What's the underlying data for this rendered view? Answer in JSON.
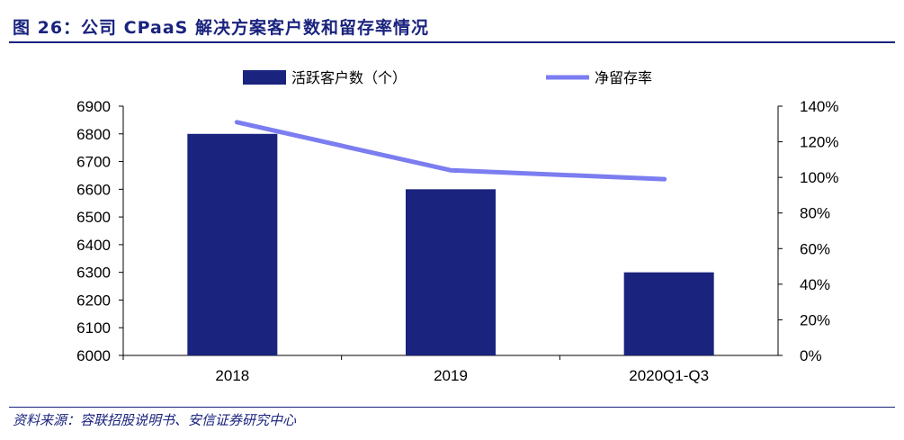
{
  "title": "图 26：公司 CPaaS 解决方案客户数和留存率情况",
  "source": "资料来源：容联招股说明书、安信证券研究中心",
  "colors": {
    "bars": "#1a237e",
    "line": "#7b7df0",
    "accent": "#1a237e"
  },
  "chart_data": {
    "type": "bar+line",
    "categories": [
      "2018",
      "2019",
      "2020Q1-Q3"
    ],
    "series": [
      {
        "name": "活跃客户数（个）",
        "type": "bar",
        "axis": "left",
        "values": [
          6800,
          6600,
          6300
        ]
      },
      {
        "name": "净留存率",
        "type": "line",
        "axis": "right",
        "values": [
          131,
          104,
          99
        ]
      }
    ],
    "y_left": {
      "min": 6000,
      "max": 6900,
      "ticks": [
        "6000",
        "6100",
        "6200",
        "6300",
        "6400",
        "6500",
        "6600",
        "6700",
        "6800",
        "6900"
      ]
    },
    "y_right": {
      "min": 0,
      "max": 140,
      "ticks": [
        "0%",
        "20%",
        "40%",
        "60%",
        "80%",
        "100%",
        "120%",
        "140%"
      ]
    },
    "legend": {
      "position": "top",
      "labels": [
        "活跃客户数（个）",
        "净留存率"
      ]
    }
  }
}
